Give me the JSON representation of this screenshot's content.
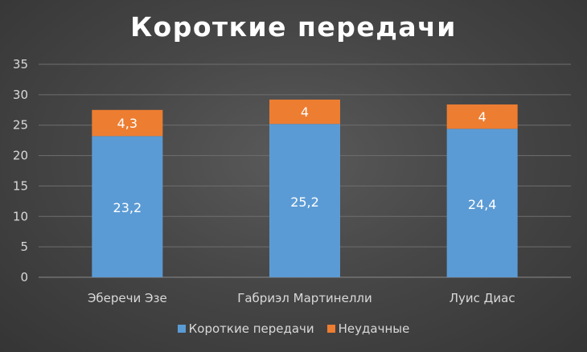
{
  "colors": {
    "primary_series": "#5b9bd5",
    "secondary_series": "#ed7d31",
    "gridline": "#6e6e6e",
    "axis_text": "#d9d9d9"
  },
  "chart_data": {
    "type": "bar",
    "stacked": true,
    "title": "Короткие передачи",
    "xlabel": "",
    "ylabel": "",
    "categories": [
      "Эберечи Эзе",
      "Габриэл Мартинелли",
      "Луис Диас"
    ],
    "series": [
      {
        "name": "Короткие передачи",
        "values": [
          23.2,
          25.2,
          24.4
        ],
        "labels": [
          "23,2",
          "25,2",
          "24,4"
        ],
        "color": "#5b9bd5"
      },
      {
        "name": "Неудачные",
        "values": [
          4.3,
          4,
          4
        ],
        "labels": [
          "4,3",
          "4",
          "4"
        ],
        "color": "#ed7d31"
      }
    ],
    "ylim": [
      0,
      35
    ],
    "yticks": [
      0,
      5,
      10,
      15,
      20,
      25,
      30,
      35
    ],
    "grid": true,
    "legend_position": "bottom"
  }
}
